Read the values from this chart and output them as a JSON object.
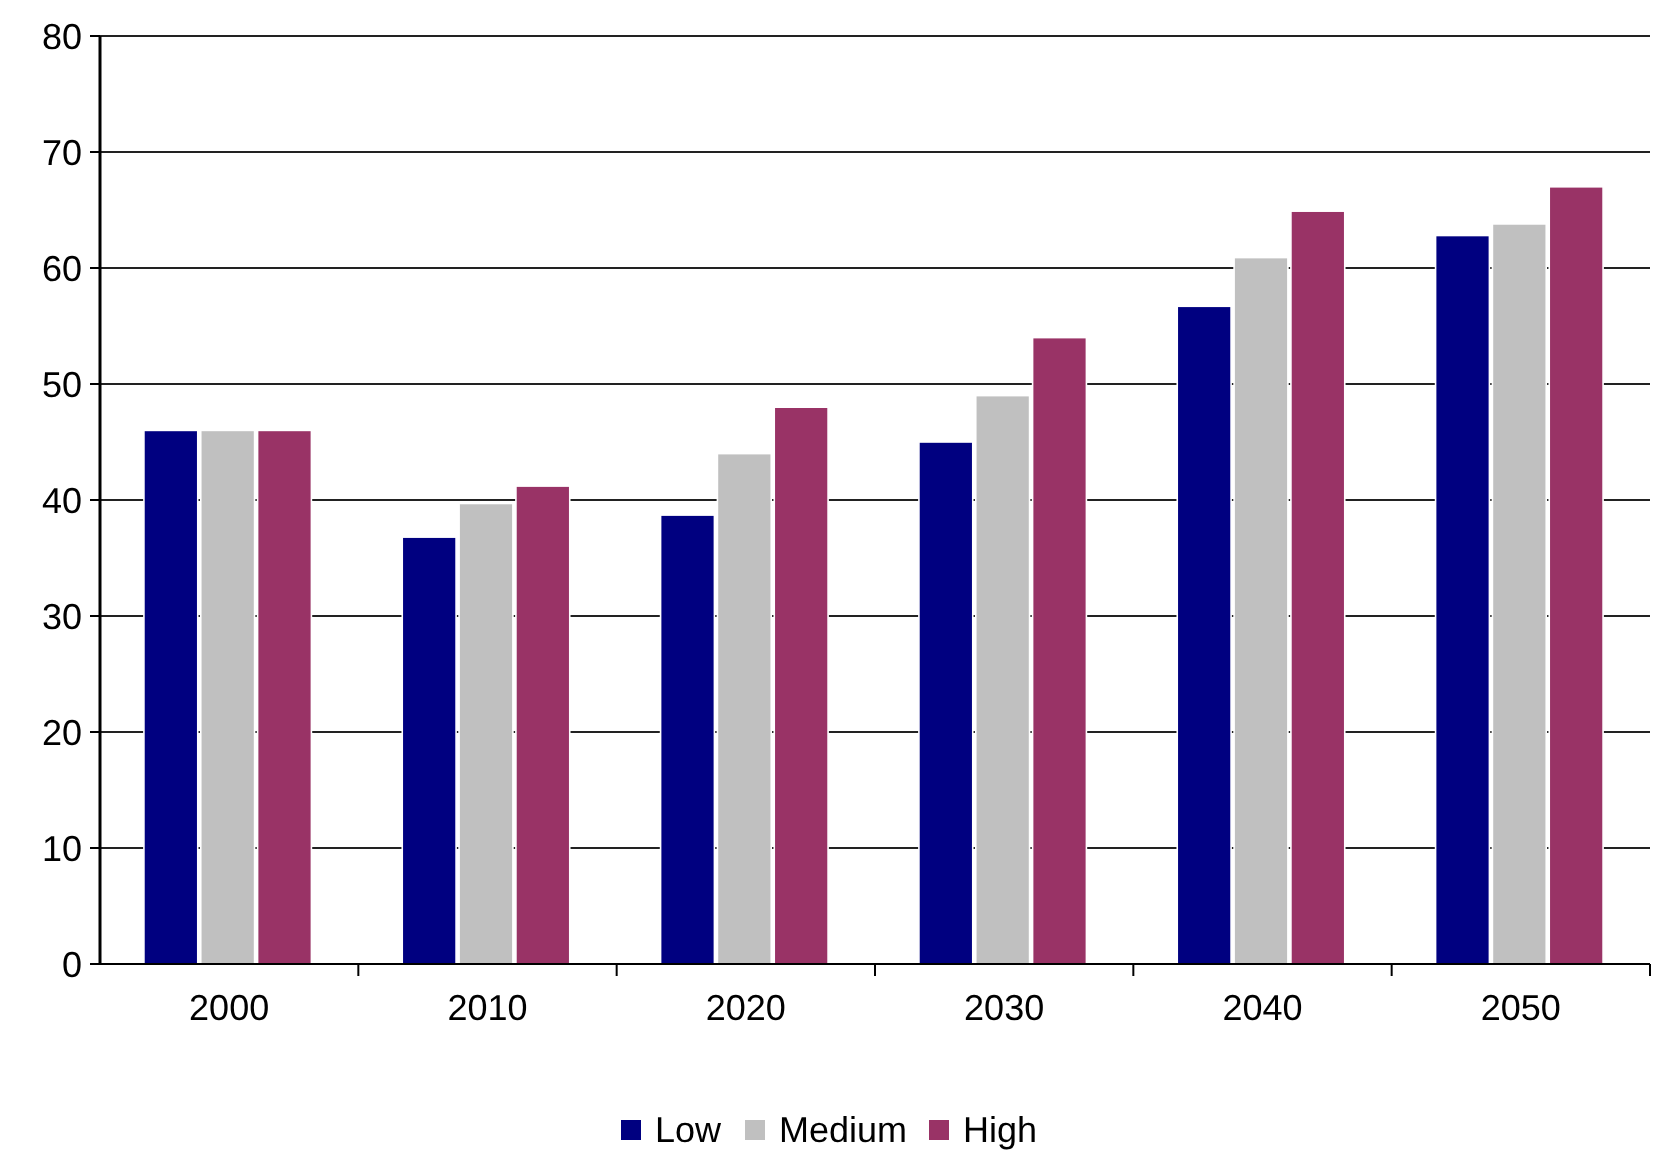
{
  "chart_data": {
    "type": "bar",
    "categories": [
      "2000",
      "2010",
      "2020",
      "2030",
      "2040",
      "2050"
    ],
    "series": [
      {
        "name": "Low",
        "color": "#000080",
        "values": [
          46,
          36.8,
          38.7,
          45,
          56.7,
          62.8
        ]
      },
      {
        "name": "Medium",
        "color": "#c0c0c0",
        "values": [
          46,
          39.7,
          44,
          49,
          60.9,
          63.8
        ]
      },
      {
        "name": "High",
        "color": "#993366",
        "values": [
          46,
          41.2,
          48,
          54,
          64.9,
          67
        ]
      }
    ],
    "ylim": [
      0,
      80
    ],
    "yticks": [
      0,
      10,
      20,
      30,
      40,
      50,
      60,
      70,
      80
    ],
    "grid": "y",
    "legend": "bottom"
  }
}
